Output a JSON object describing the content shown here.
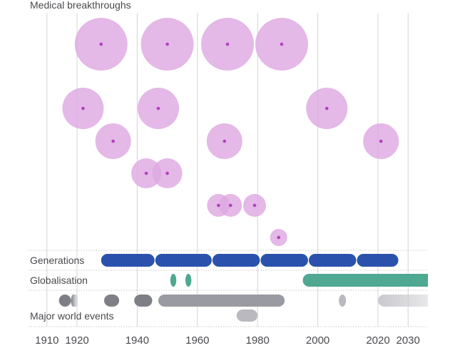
{
  "chart_data": {
    "type": "scatter",
    "title": "",
    "xlabel": "",
    "ylabel": "",
    "x_range": [
      1901,
      2036
    ],
    "x_ticks": [
      1910,
      1920,
      1940,
      1960,
      1980,
      2000,
      2020,
      2030
    ],
    "x_tick_labels": [
      "1910",
      "1920",
      "1940",
      "1960",
      "1980",
      "2000",
      "2020",
      "2030"
    ],
    "grid": "vertical",
    "colors": {
      "bubble": "#dea8e2",
      "bubble_dot": "#b43fc0",
      "generations": "#2a52ad",
      "globalisation": "#4fa891",
      "events_dark": "#7e7f86",
      "events_mid": "#9a9aa2",
      "events_light": "#b9b9bf",
      "grid": "#d4d4d8",
      "row_divider": "#c8c8cc"
    },
    "sections": {
      "medical": {
        "label": "Medical breakthroughs",
        "bubbles": [
          {
            "year": 1928,
            "row": 1,
            "size": 5
          },
          {
            "year": 1950,
            "row": 1,
            "size": 5
          },
          {
            "year": 1970,
            "row": 1,
            "size": 5
          },
          {
            "year": 1988,
            "row": 1,
            "size": 5
          },
          {
            "year": 1922,
            "row": 2,
            "size": 4
          },
          {
            "year": 1947,
            "row": 2,
            "size": 4
          },
          {
            "year": 2003,
            "row": 2,
            "size": 4
          },
          {
            "year": 1932,
            "row": 3,
            "size": 3
          },
          {
            "year": 1969,
            "row": 3,
            "size": 3
          },
          {
            "year": 2021,
            "row": 3,
            "size": 3
          },
          {
            "year": 1943,
            "row": 4,
            "size": 2
          },
          {
            "year": 1950,
            "row": 4,
            "size": 2
          },
          {
            "year": 1967,
            "row": 5,
            "size": 1
          },
          {
            "year": 1971,
            "row": 5,
            "size": 1
          },
          {
            "year": 1979,
            "row": 5,
            "size": 1
          },
          {
            "year": 1987,
            "row": 6,
            "size": 0
          }
        ]
      },
      "generations": {
        "label": "Generations",
        "spans": [
          {
            "start": 1928,
            "end": 1945
          },
          {
            "start": 1946,
            "end": 1964
          },
          {
            "start": 1965,
            "end": 1980
          },
          {
            "start": 1981,
            "end": 1996
          },
          {
            "start": 1997,
            "end": 2012
          },
          {
            "start": 2013,
            "end": 2026
          }
        ]
      },
      "globalisation": {
        "label": "Globalisation",
        "spans": [
          {
            "start": 1951,
            "end": 1953
          },
          {
            "start": 1956,
            "end": 1958
          },
          {
            "start": 1995,
            "end": 2036,
            "open_end": true
          }
        ]
      },
      "events": {
        "label": "Major world events",
        "spans": [
          {
            "start": 1914,
            "end": 1918,
            "lane": 1,
            "tone": "dark"
          },
          {
            "start": 1918,
            "end": 1920,
            "lane": 1,
            "tone": "fade-right"
          },
          {
            "start": 1929,
            "end": 1934,
            "lane": 1,
            "tone": "dark"
          },
          {
            "start": 1939,
            "end": 1945,
            "lane": 1,
            "tone": "dark"
          },
          {
            "start": 1947,
            "end": 1989,
            "lane": 1,
            "tone": "mid"
          },
          {
            "start": 2007,
            "end": 2009,
            "lane": 1,
            "tone": "light"
          },
          {
            "start": 2020,
            "end": 2036,
            "lane": 1,
            "tone": "fade-out"
          },
          {
            "start": 1973,
            "end": 1980,
            "lane": 2,
            "tone": "light"
          }
        ]
      }
    }
  }
}
